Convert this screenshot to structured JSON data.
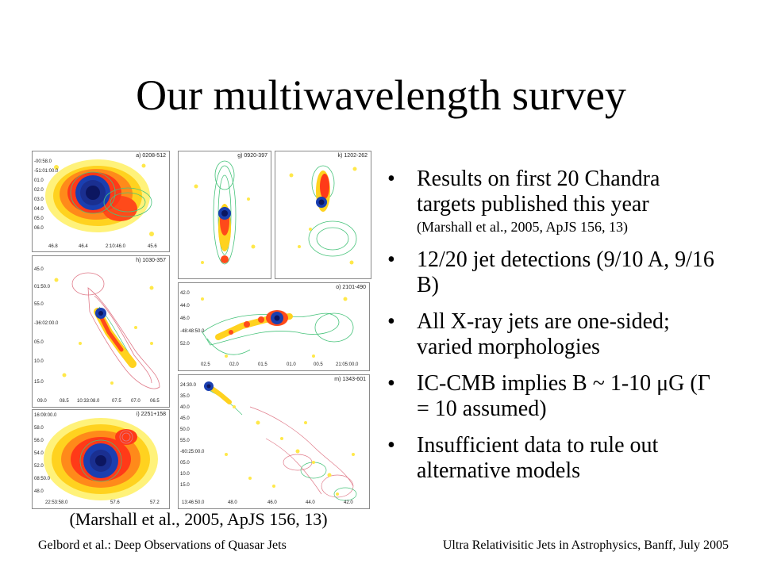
{
  "slide": {
    "title": "Our multiwavelength survey",
    "caption": "(Marshall et al., 2005, ApJS 156, 13)",
    "footer_left": "Gelbord et al.: Deep Observations of Quasar Jets",
    "footer_right": "Ultra Relativisitic Jets in Astrophysics, Banff, July 2005"
  },
  "bullets": [
    {
      "text": "Results on first 20 Chandra targets published this year",
      "sub": "(Marshall et al., 2005, ApJS 156, 13)"
    },
    {
      "text": "12/20 jet detections (9/10 A, 9/16 B)",
      "sub": ""
    },
    {
      "text": "All X-ray jets are one-sided; varied morphologies",
      "sub": ""
    },
    {
      "text": "IC-CMB implies B ~ 1-10 μG (Γ = 10 assumed)",
      "sub": ""
    },
    {
      "text": "Insufficient data to rule out alternative models",
      "sub": ""
    }
  ],
  "bullet_glyph": "•",
  "panels": {
    "a": {
      "label": "a) 0208-512",
      "yticks": [
        "-00:58.0",
        "-51:01:00.0",
        "01.0",
        "02.0",
        "03.0",
        "04.0",
        "05.0",
        "06.0"
      ],
      "xticks": [
        "46.8",
        "46.4",
        "2:10:46.0",
        "45.6"
      ]
    },
    "g": {
      "label": "g) 0920-397"
    },
    "k": {
      "label": "k) 1202-262"
    },
    "h": {
      "label": "h) 1030-357",
      "yticks": [
        "45.0",
        "01:50.0",
        "55.0",
        "-36:02:00.0",
        "05.0",
        "10.0",
        "15.0"
      ],
      "xticks": [
        "09.0",
        "08.5",
        "10:33:08.0",
        "07.5",
        "07.0",
        "06.5"
      ]
    },
    "o": {
      "label": "o) 2101-490",
      "yticks": [
        "42.0",
        "44.0",
        "46.0",
        "-48:48:50.0",
        "52.0"
      ],
      "xticks": [
        "02.5",
        "02.0",
        "01.5",
        "01.0",
        "00.5",
        "21:05:00.0"
      ]
    },
    "i": {
      "label": "i) 2251+158",
      "yticks": [
        "16:09:00.0",
        "58.0",
        "56.0",
        "54.0",
        "52.0",
        "08:50.0",
        "48.0"
      ],
      "xticks": [
        "22:53:58.0",
        "57.6",
        "57.2"
      ]
    },
    "m": {
      "label": "m) 1343-601",
      "yticks": [
        "24:30.0",
        "35.0",
        "40.0",
        "45.0",
        "50.0",
        "55.0",
        "-60:25:00.0",
        "05.0",
        "10.0",
        "15.0"
      ],
      "xticks": [
        "13:46:50.0",
        "48.0",
        "46.0",
        "44.0",
        "42.0"
      ]
    }
  }
}
